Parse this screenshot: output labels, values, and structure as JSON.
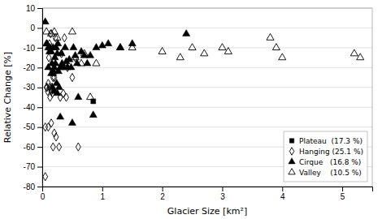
{
  "chart_data": {
    "type": "scatter",
    "xlabel": "Glacier Size [km²]",
    "ylabel": "Relative Change [%]",
    "xlim": [
      0,
      5.5
    ],
    "ylim": [
      -80,
      10
    ],
    "xticks": [
      0,
      1,
      2,
      3,
      4,
      5
    ],
    "yticks": [
      10,
      0,
      -10,
      -20,
      -30,
      -40,
      -50,
      -60,
      -70,
      -80
    ],
    "grid": "y",
    "legend": "lower-right",
    "series": [
      {
        "name": "Plateau  (17.3 %)",
        "marker": "square",
        "color": "black",
        "x": [
          0.85
        ],
        "values": [
          -37
        ]
      },
      {
        "name": "Hanging (25.1 %)",
        "marker": "diamond-open",
        "color": "black",
        "x": [
          0.05,
          0.05,
          0.07,
          0.08,
          0.09,
          0.1,
          0.1,
          0.11,
          0.12,
          0.12,
          0.13,
          0.14,
          0.14,
          0.15,
          0.15,
          0.16,
          0.17,
          0.18,
          0.18,
          0.2,
          0.2,
          0.22,
          0.23,
          0.25,
          0.28,
          0.3,
          0.32,
          0.35,
          0.37,
          0.4,
          0.42,
          0.5,
          0.55,
          0.6
        ],
        "values": [
          -75,
          -50,
          -30,
          -30,
          -32,
          -28,
          -50,
          -15,
          -8,
          -30,
          -35,
          -3,
          -20,
          -32,
          -48,
          -30,
          -33,
          -25,
          -60,
          -25,
          -53,
          -5,
          -55,
          -20,
          -60,
          -35,
          -13,
          -33,
          -5,
          -35,
          -20,
          -25,
          -15,
          -60
        ]
      },
      {
        "name": "Cirque   (16.8 %)",
        "marker": "triangle",
        "color": "black",
        "x": [
          0.05,
          0.07,
          0.08,
          0.1,
          0.1,
          0.12,
          0.13,
          0.15,
          0.15,
          0.16,
          0.17,
          0.18,
          0.18,
          0.19,
          0.2,
          0.2,
          0.21,
          0.22,
          0.23,
          0.24,
          0.25,
          0.25,
          0.26,
          0.27,
          0.28,
          0.3,
          0.3,
          0.32,
          0.33,
          0.35,
          0.38,
          0.4,
          0.42,
          0.45,
          0.48,
          0.5,
          0.52,
          0.55,
          0.58,
          0.6,
          0.65,
          0.7,
          0.75,
          0.8,
          0.85,
          0.9,
          1.0,
          1.1,
          1.3,
          1.5,
          2.4
        ],
        "values": [
          3,
          -8,
          -8,
          -10,
          -20,
          -12,
          -10,
          -12,
          -23,
          -18,
          -30,
          -10,
          -23,
          -22,
          -20,
          -32,
          -15,
          -18,
          -10,
          -28,
          -33,
          -13,
          -8,
          -22,
          -30,
          -20,
          -45,
          -13,
          -18,
          -20,
          -10,
          -17,
          -20,
          -16,
          -20,
          -48,
          -10,
          -14,
          -18,
          -35,
          -12,
          -14,
          -18,
          -14,
          -44,
          -10,
          -9,
          -8,
          -10,
          -8,
          -3
        ]
      },
      {
        "name": "Valley    (10.5 %)",
        "marker": "triangle-open",
        "color": "black",
        "x": [
          0.07,
          0.15,
          0.2,
          0.25,
          0.5,
          0.55,
          0.65,
          0.7,
          0.8,
          0.9,
          1.3,
          1.5,
          2.0,
          2.3,
          2.5,
          2.7,
          3.0,
          3.1,
          3.8,
          3.9,
          4.0,
          5.2,
          5.3
        ],
        "values": [
          -2,
          -3,
          -2,
          -5,
          -2,
          -15,
          -18,
          -13,
          -35,
          -18,
          -10,
          -10,
          -12,
          -15,
          -10,
          -13,
          -10,
          -12,
          -5,
          -10,
          -15,
          -13,
          -15
        ]
      }
    ]
  }
}
